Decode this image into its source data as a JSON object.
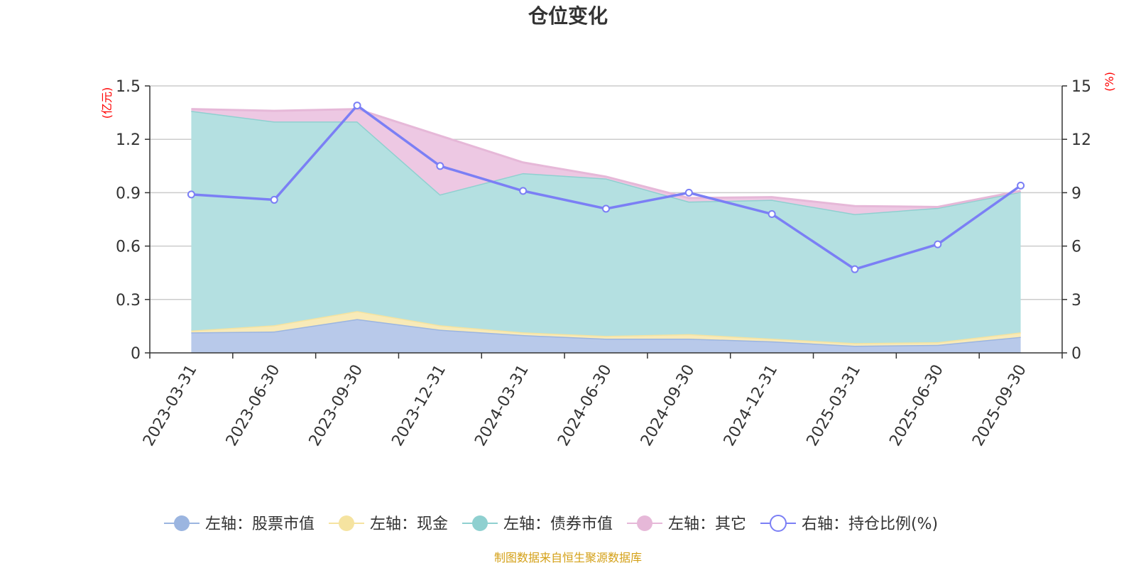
{
  "chart_data": {
    "type": "area",
    "title": "仓位变化",
    "left_axis_unit": "(亿元)",
    "right_axis_unit": "(%)",
    "categories": [
      "2023-03-31",
      "2023-06-30",
      "2023-09-30",
      "2023-12-31",
      "2024-03-31",
      "2024-06-30",
      "2024-09-30",
      "2024-12-31",
      "2025-03-31",
      "2025-06-30",
      "2025-09-30"
    ],
    "left_ylim": [
      0,
      1.5
    ],
    "left_ticks": [
      "0",
      "0.3",
      "0.6",
      "0.9",
      "1.2",
      "1.5"
    ],
    "right_ylim": [
      0,
      15
    ],
    "right_ticks": [
      "0",
      "3",
      "6",
      "9",
      "12",
      "15"
    ],
    "grid": true,
    "stacked": true,
    "series": [
      {
        "name": "左轴：股票市值",
        "axis": "left",
        "type": "area",
        "color": "#9bb5e0",
        "fill": "#b8c9ea",
        "values": [
          0.115,
          0.12,
          0.19,
          0.13,
          0.1,
          0.08,
          0.08,
          0.065,
          0.04,
          0.045,
          0.09
        ]
      },
      {
        "name": "左轴：现金",
        "axis": "left",
        "type": "area",
        "color": "#f5e3a0",
        "fill": "#f8eab8",
        "values": [
          0.01,
          0.035,
          0.045,
          0.025,
          0.015,
          0.015,
          0.025,
          0.015,
          0.015,
          0.015,
          0.025
        ]
      },
      {
        "name": "左轴：债券市值",
        "axis": "left",
        "type": "area",
        "color": "#8fd0d0",
        "fill": "#b4e0e1",
        "values": [
          1.235,
          1.145,
          1.065,
          0.735,
          0.895,
          0.885,
          0.745,
          0.78,
          0.725,
          0.755,
          0.79
        ]
      },
      {
        "name": "左轴：其它",
        "axis": "left",
        "type": "area",
        "color": "#e6b8d8",
        "fill": "#edc8e3",
        "values": [
          0.01,
          0.06,
          0.07,
          0.33,
          0.06,
          0.01,
          0.02,
          0.015,
          0.045,
          0.005,
          0.005
        ]
      },
      {
        "name": "右轴：持仓比例(%)",
        "axis": "right",
        "type": "line",
        "color": "#7b7ff5",
        "values": [
          8.9,
          8.6,
          13.9,
          10.5,
          9.1,
          8.1,
          9.0,
          7.8,
          4.7,
          6.1,
          9.4
        ]
      }
    ],
    "legend_position": "bottom"
  },
  "source_note": "制图数据来自恒生聚源数据库"
}
